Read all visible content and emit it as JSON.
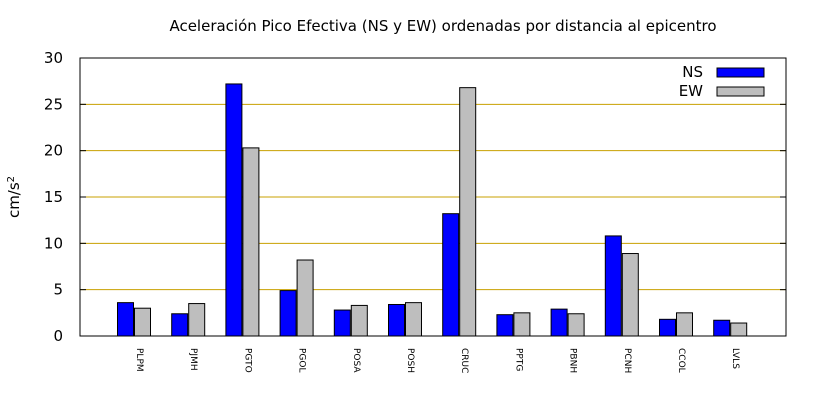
{
  "chart_data": {
    "type": "bar",
    "title": "Aceleración Pico Efectiva (NS y EW) ordenadas por distancia al epicentro",
    "ylabel": "cm/s",
    "ylabel_superscript": "2",
    "xlabel": "",
    "ylim": [
      0,
      30
    ],
    "yticks": [
      "0",
      "5",
      "10",
      "15",
      "20",
      "25",
      "30"
    ],
    "grid": "horizontal",
    "legend_position": "top-right",
    "categories": [
      "PLPM",
      "PJMH",
      "PGTO",
      "PGOL",
      "POSA",
      "POSH",
      "CRUC",
      "PPTG",
      "PBNH",
      "PCNH",
      "CCOL",
      "LVLS"
    ],
    "series": [
      {
        "name": "NS",
        "color": "#0000ff",
        "values": [
          3.6,
          2.4,
          27.2,
          4.9,
          2.8,
          3.4,
          13.2,
          2.3,
          2.9,
          10.8,
          1.8,
          1.7
        ]
      },
      {
        "name": "EW",
        "color": "#bebebe",
        "values": [
          3.0,
          3.5,
          20.3,
          8.2,
          3.3,
          3.6,
          26.8,
          2.5,
          2.4,
          8.9,
          2.5,
          1.4
        ]
      }
    ],
    "grid_color": "#c8a000"
  }
}
